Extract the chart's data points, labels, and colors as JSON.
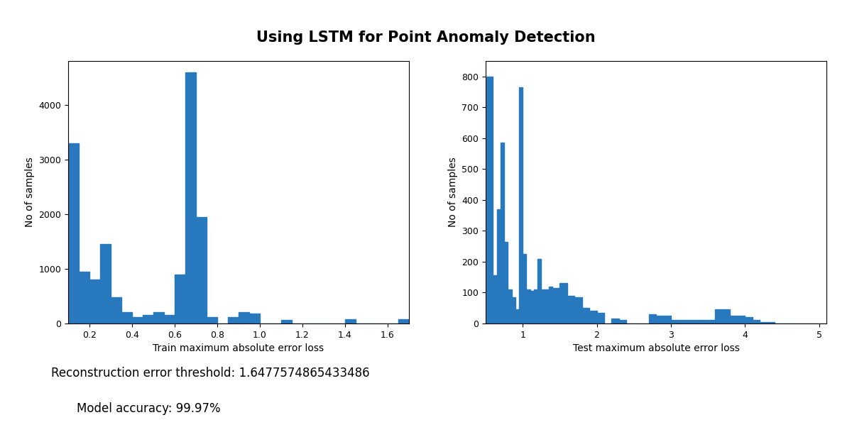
{
  "title": "Using LSTM for Point Anomaly Detection",
  "title_fontsize": 15,
  "title_fontweight": "bold",
  "background_color": "#ffffff",
  "bar_color": "#2878bd",
  "annotation_text1": "Reconstruction error threshold: 1.6477574865433486",
  "annotation_text2": "Model accuracy: 99.97%",
  "train": {
    "xlabel": "Train maximum absolute error loss",
    "ylabel": "No of samples",
    "xlim": [
      0.1,
      1.7
    ],
    "ylim": [
      0,
      4800
    ],
    "xticks": [
      0.2,
      0.4,
      0.6,
      0.8,
      1.0,
      1.2,
      1.4,
      1.6
    ],
    "yticks": [
      0,
      1000,
      2000,
      3000,
      4000
    ],
    "bin_edges": [
      0.1,
      0.15,
      0.2,
      0.25,
      0.3,
      0.35,
      0.4,
      0.45,
      0.5,
      0.55,
      0.6,
      0.65,
      0.7,
      0.75,
      0.8,
      0.85,
      0.9,
      0.95,
      1.0,
      1.05,
      1.1,
      1.15,
      1.2,
      1.25,
      1.3,
      1.35,
      1.4,
      1.45,
      1.5,
      1.55,
      1.6,
      1.65,
      1.7
    ],
    "bar_heights": [
      3300,
      950,
      800,
      1450,
      480,
      200,
      120,
      150,
      200,
      150,
      900,
      4600,
      1950,
      120,
      0,
      120,
      200,
      175,
      0,
      0,
      60,
      0,
      0,
      0,
      0,
      0,
      80,
      0,
      0,
      0,
      0,
      80
    ]
  },
  "test": {
    "xlabel": "Test maximum absolute error loss",
    "ylabel": "No of samples",
    "xlim": [
      0.5,
      5.1
    ],
    "ylim": [
      0,
      850
    ],
    "xticks": [
      1,
      2,
      3,
      4,
      5
    ],
    "yticks": [
      0,
      100,
      200,
      300,
      400,
      500,
      600,
      700,
      800
    ],
    "bin_edges": [
      0.5,
      0.6,
      0.65,
      0.7,
      0.75,
      0.8,
      0.85,
      0.9,
      0.95,
      1.0,
      1.05,
      1.1,
      1.15,
      1.2,
      1.25,
      1.3,
      1.35,
      1.4,
      1.5,
      1.6,
      1.7,
      1.8,
      1.9,
      2.0,
      2.1,
      2.2,
      2.3,
      2.4,
      2.5,
      2.6,
      2.7,
      2.8,
      3.0,
      3.2,
      3.4,
      3.6,
      3.8,
      4.0,
      4.1,
      4.2,
      4.3,
      4.4,
      4.5,
      4.6,
      4.7,
      4.8,
      4.9,
      5.0,
      5.1
    ],
    "bar_heights": [
      800,
      155,
      370,
      585,
      265,
      110,
      85,
      45,
      765,
      225,
      110,
      105,
      110,
      210,
      110,
      110,
      120,
      115,
      130,
      90,
      85,
      50,
      40,
      35,
      0,
      15,
      10,
      0,
      0,
      0,
      30,
      25,
      12,
      10,
      10,
      45,
      25,
      20,
      10,
      5,
      5,
      0,
      0,
      0,
      0,
      0,
      0,
      0
    ]
  }
}
